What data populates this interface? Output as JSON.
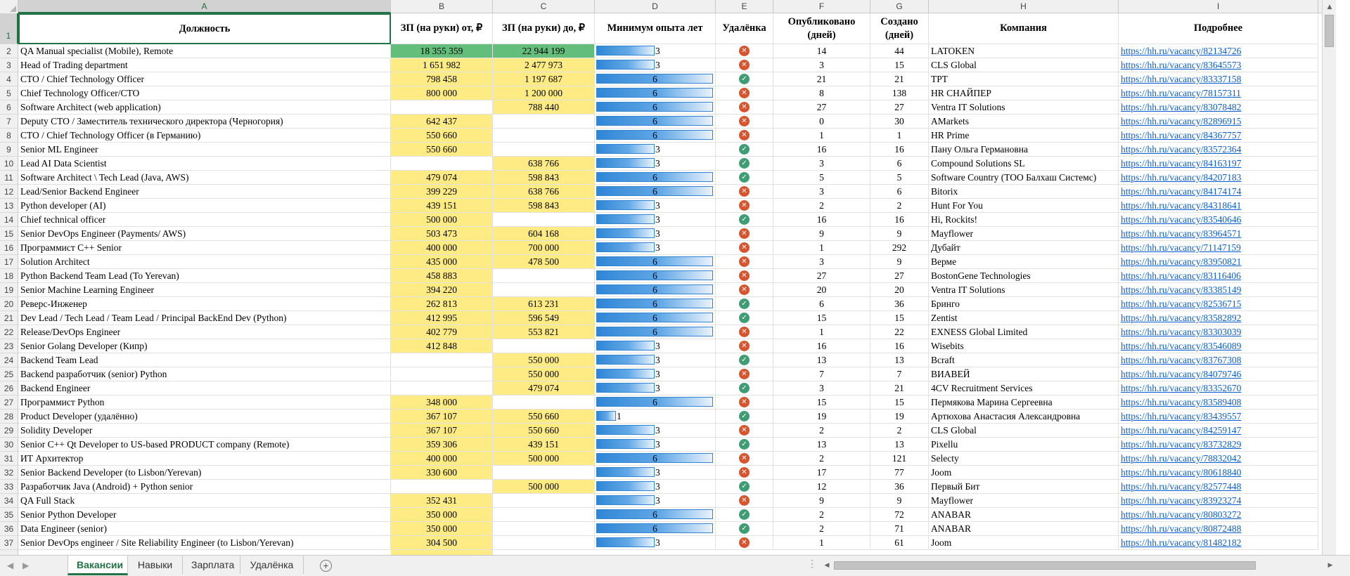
{
  "columns": [
    "A",
    "B",
    "C",
    "D",
    "E",
    "F",
    "G",
    "H",
    "I"
  ],
  "headers": {
    "title": "Должность",
    "salary_from": "ЗП (на руки) от, ₽",
    "salary_to": "ЗП (на руки) до, ₽",
    "min_exp": "Минимум опыта лет",
    "remote": "Удалёнка",
    "published": "Опубликовано (дней)",
    "created": "Создано (дней)",
    "company": "Компания",
    "details": "Подробнее"
  },
  "rows": [
    {
      "n": "2",
      "title": "QA Manual specialist (Mobile), Remote",
      "from": "18 355 359",
      "to": "22 944 199",
      "exp": 3,
      "remote": false,
      "pub": "14",
      "created": "44",
      "company": "LATOKEN",
      "link": "https://hh.ru/vacancy/82134726"
    },
    {
      "n": "3",
      "title": "Head of Trading department",
      "from": "1 651 982",
      "to": "2 477 973",
      "exp": 3,
      "remote": false,
      "pub": "3",
      "created": "15",
      "company": "CLS Global",
      "link": "https://hh.ru/vacancy/83645573"
    },
    {
      "n": "4",
      "title": "CTO / Chief Technology Officer",
      "from": "798 458",
      "to": "1 197 687",
      "exp": 6,
      "remote": true,
      "pub": "21",
      "created": "21",
      "company": "TPT",
      "link": "https://hh.ru/vacancy/83337158"
    },
    {
      "n": "5",
      "title": "Chief Technology Officer/CTO",
      "from": "800 000",
      "to": "1 200 000",
      "exp": 6,
      "remote": false,
      "pub": "8",
      "created": "138",
      "company": "HR СНАЙПЕР",
      "link": "https://hh.ru/vacancy/78157311"
    },
    {
      "n": "6",
      "title": "Software Architect (web application)",
      "from": "",
      "to": "788 440",
      "exp": 6,
      "remote": false,
      "pub": "27",
      "created": "27",
      "company": "Ventra IT Solutions",
      "link": "https://hh.ru/vacancy/83078482"
    },
    {
      "n": "7",
      "title": "Deputy CTO / Заместитель технического директора (Черногория)",
      "from": "642 437",
      "to": "",
      "exp": 6,
      "remote": false,
      "pub": "0",
      "created": "30",
      "company": "AMarkets",
      "link": "https://hh.ru/vacancy/82896915"
    },
    {
      "n": "8",
      "title": "CTO / Chief Technology Officer (в Германию)",
      "from": "550 660",
      "to": "",
      "exp": 6,
      "remote": false,
      "pub": "1",
      "created": "1",
      "company": "HR Prime",
      "link": "https://hh.ru/vacancy/84367757"
    },
    {
      "n": "9",
      "title": "Senior ML Engineer",
      "from": "550 660",
      "to": "",
      "exp": 3,
      "remote": true,
      "pub": "16",
      "created": "16",
      "company": "Пану Ольга Германовна",
      "link": "https://hh.ru/vacancy/83572364"
    },
    {
      "n": "10",
      "title": "Lead AI Data Scientist",
      "from": "",
      "to": "638 766",
      "exp": 3,
      "remote": true,
      "pub": "3",
      "created": "6",
      "company": "Compound Solutions SL",
      "link": "https://hh.ru/vacancy/84163197"
    },
    {
      "n": "11",
      "title": "Software Architect \\ Tech Lead (Java, AWS)",
      "from": "479 074",
      "to": "598 843",
      "exp": 6,
      "remote": true,
      "pub": "5",
      "created": "5",
      "company": "Software Country (ТОО Балхаш Системс)",
      "link": "https://hh.ru/vacancy/84207183"
    },
    {
      "n": "12",
      "title": "Lead/Senior Backend Engineer",
      "from": "399 229",
      "to": "638 766",
      "exp": 6,
      "remote": false,
      "pub": "3",
      "created": "6",
      "company": "Bitorix",
      "link": "https://hh.ru/vacancy/84174174"
    },
    {
      "n": "13",
      "title": "Python developer (AI)",
      "from": "439 151",
      "to": "598 843",
      "exp": 3,
      "remote": false,
      "pub": "2",
      "created": "2",
      "company": "Hunt For You",
      "link": "https://hh.ru/vacancy/84318641"
    },
    {
      "n": "14",
      "title": "Chief technical officer",
      "from": "500 000",
      "to": "",
      "exp": 3,
      "remote": true,
      "pub": "16",
      "created": "16",
      "company": "Hi, Rockits!",
      "link": "https://hh.ru/vacancy/83540646"
    },
    {
      "n": "15",
      "title": "Senior DevOps Engineer (Payments/ AWS)",
      "from": "503 473",
      "to": "604 168",
      "exp": 3,
      "remote": false,
      "pub": "9",
      "created": "9",
      "company": "Mayflower",
      "link": "https://hh.ru/vacancy/83964571"
    },
    {
      "n": "16",
      "title": "Программист С++ Senior",
      "from": "400 000",
      "to": "700 000",
      "exp": 3,
      "remote": false,
      "pub": "1",
      "created": "292",
      "company": "Дубайт",
      "link": "https://hh.ru/vacancy/71147159"
    },
    {
      "n": "17",
      "title": "Solution Architect",
      "from": "435 000",
      "to": "478 500",
      "exp": 6,
      "remote": false,
      "pub": "3",
      "created": "9",
      "company": "Верме",
      "link": "https://hh.ru/vacancy/83950821"
    },
    {
      "n": "18",
      "title": "Python Backend Team Lead (To Yerevan)",
      "from": "458 883",
      "to": "",
      "exp": 6,
      "remote": false,
      "pub": "27",
      "created": "27",
      "company": "BostonGene Technologies",
      "link": "https://hh.ru/vacancy/83116406"
    },
    {
      "n": "19",
      "title": "Senior Machine Learning Engineer",
      "from": "394 220",
      "to": "",
      "exp": 6,
      "remote": false,
      "pub": "20",
      "created": "20",
      "company": "Ventra IT Solutions",
      "link": "https://hh.ru/vacancy/83385149"
    },
    {
      "n": "20",
      "title": "Реверс-Инженер",
      "from": "262 813",
      "to": "613 231",
      "exp": 6,
      "remote": true,
      "pub": "6",
      "created": "36",
      "company": "Бринго",
      "link": "https://hh.ru/vacancy/82536715"
    },
    {
      "n": "21",
      "title": "Dev Lead / Tech Lead / Team Lead / Principal BackEnd Dev (Python)",
      "from": "412 995",
      "to": "596 549",
      "exp": 6,
      "remote": true,
      "pub": "15",
      "created": "15",
      "company": "Zentist",
      "link": "https://hh.ru/vacancy/83582892"
    },
    {
      "n": "22",
      "title": "Release/DevOps Engineer",
      "from": "402 779",
      "to": "553 821",
      "exp": 6,
      "remote": false,
      "pub": "1",
      "created": "22",
      "company": "EXNESS Global Limited",
      "link": "https://hh.ru/vacancy/83303039"
    },
    {
      "n": "23",
      "title": "Senior Golang Developer (Кипр)",
      "from": "412 848",
      "to": "",
      "exp": 3,
      "remote": false,
      "pub": "16",
      "created": "16",
      "company": "Wisebits",
      "link": "https://hh.ru/vacancy/83546089"
    },
    {
      "n": "24",
      "title": "Backend Team Lead",
      "from": "",
      "to": "550 000",
      "exp": 3,
      "remote": true,
      "pub": "13",
      "created": "13",
      "company": "Bcraft",
      "link": "https://hh.ru/vacancy/83767308"
    },
    {
      "n": "25",
      "title": "Backend разработчик (senior) Python",
      "from": "",
      "to": "550 000",
      "exp": 3,
      "remote": false,
      "pub": "7",
      "created": "7",
      "company": "ВИАВЕЙ",
      "link": "https://hh.ru/vacancy/84079746"
    },
    {
      "n": "26",
      "title": "Backend Engineer",
      "from": "",
      "to": "479 074",
      "exp": 3,
      "remote": true,
      "pub": "3",
      "created": "21",
      "company": "4CV Recruitment Services",
      "link": "https://hh.ru/vacancy/83352670"
    },
    {
      "n": "27",
      "title": "Программист Python",
      "from": "348 000",
      "to": "",
      "exp": 6,
      "remote": false,
      "pub": "15",
      "created": "15",
      "company": "Пермякова Марина Сергеевна",
      "link": "https://hh.ru/vacancy/83589408"
    },
    {
      "n": "28",
      "title": "Product Developer (удалённо)",
      "from": "367 107",
      "to": "550 660",
      "exp": 1,
      "remote": true,
      "pub": "19",
      "created": "19",
      "company": "Артюхова Анастасия Александровна",
      "link": "https://hh.ru/vacancy/83439557"
    },
    {
      "n": "29",
      "title": "Solidity Developer",
      "from": "367 107",
      "to": "550 660",
      "exp": 3,
      "remote": false,
      "pub": "2",
      "created": "2",
      "company": "CLS Global",
      "link": "https://hh.ru/vacancy/84259147"
    },
    {
      "n": "30",
      "title": "Senior C++ Qt Developer to US-based PRODUCT company (Remote)",
      "from": "359 306",
      "to": "439 151",
      "exp": 3,
      "remote": true,
      "pub": "13",
      "created": "13",
      "company": "Pixellu",
      "link": "https://hh.ru/vacancy/83732829"
    },
    {
      "n": "31",
      "title": "ИТ Архитектор",
      "from": "400 000",
      "to": "500 000",
      "exp": 6,
      "remote": false,
      "pub": "2",
      "created": "121",
      "company": "Selecty",
      "link": "https://hh.ru/vacancy/78832042"
    },
    {
      "n": "32",
      "title": "Senior Backend Developer (to Lisbon/Yerevan)",
      "from": "330 600",
      "to": "",
      "exp": 3,
      "remote": false,
      "pub": "17",
      "created": "77",
      "company": "Joom",
      "link": "https://hh.ru/vacancy/80618840"
    },
    {
      "n": "33",
      "title": "Разработчик Java (Android) + Python senior",
      "from": "",
      "to": "500 000",
      "exp": 3,
      "remote": true,
      "pub": "12",
      "created": "36",
      "company": "Первый Бит",
      "link": "https://hh.ru/vacancy/82577448"
    },
    {
      "n": "34",
      "title": "QA Full Stack",
      "from": "352 431",
      "to": "",
      "exp": 3,
      "remote": false,
      "pub": "9",
      "created": "9",
      "company": "Mayflower",
      "link": "https://hh.ru/vacancy/83923274"
    },
    {
      "n": "35",
      "title": "Senior Python Developer",
      "from": "350 000",
      "to": "",
      "exp": 6,
      "remote": true,
      "pub": "2",
      "created": "72",
      "company": "ANABAR",
      "link": "https://hh.ru/vacancy/80803272"
    },
    {
      "n": "36",
      "title": "Data Engineer (senior)",
      "from": "350 000",
      "to": "",
      "exp": 6,
      "remote": true,
      "pub": "2",
      "created": "71",
      "company": "ANABAR",
      "link": "https://hh.ru/vacancy/80872488"
    },
    {
      "n": "37",
      "title": "Senior DevOps engineer / Site Reliability Engineer (to Lisbon/Yerevan)",
      "from": "304 500",
      "to": "",
      "exp": 3,
      "remote": false,
      "pub": "1",
      "created": "61",
      "company": "Joom",
      "link": "https://hh.ru/vacancy/81482182"
    }
  ],
  "exp_max": 6,
  "tabs": [
    {
      "label": "Вакансии",
      "active": true
    },
    {
      "label": "Навыки",
      "active": false
    },
    {
      "label": "Зарплата",
      "active": false
    },
    {
      "label": "Удалёнка",
      "active": false
    }
  ],
  "icons": {
    "remote_yes": "check-circle-icon",
    "remote_no": "x-circle-icon",
    "add_sheet": "plus-circle-icon"
  },
  "colors": {
    "salary_fill": "#ffeb84",
    "salary_top": "#63be7b",
    "databar": "#2f86d6",
    "remote_yes": "#3f9d74",
    "remote_no": "#d9532c",
    "excel_green": "#217346"
  }
}
